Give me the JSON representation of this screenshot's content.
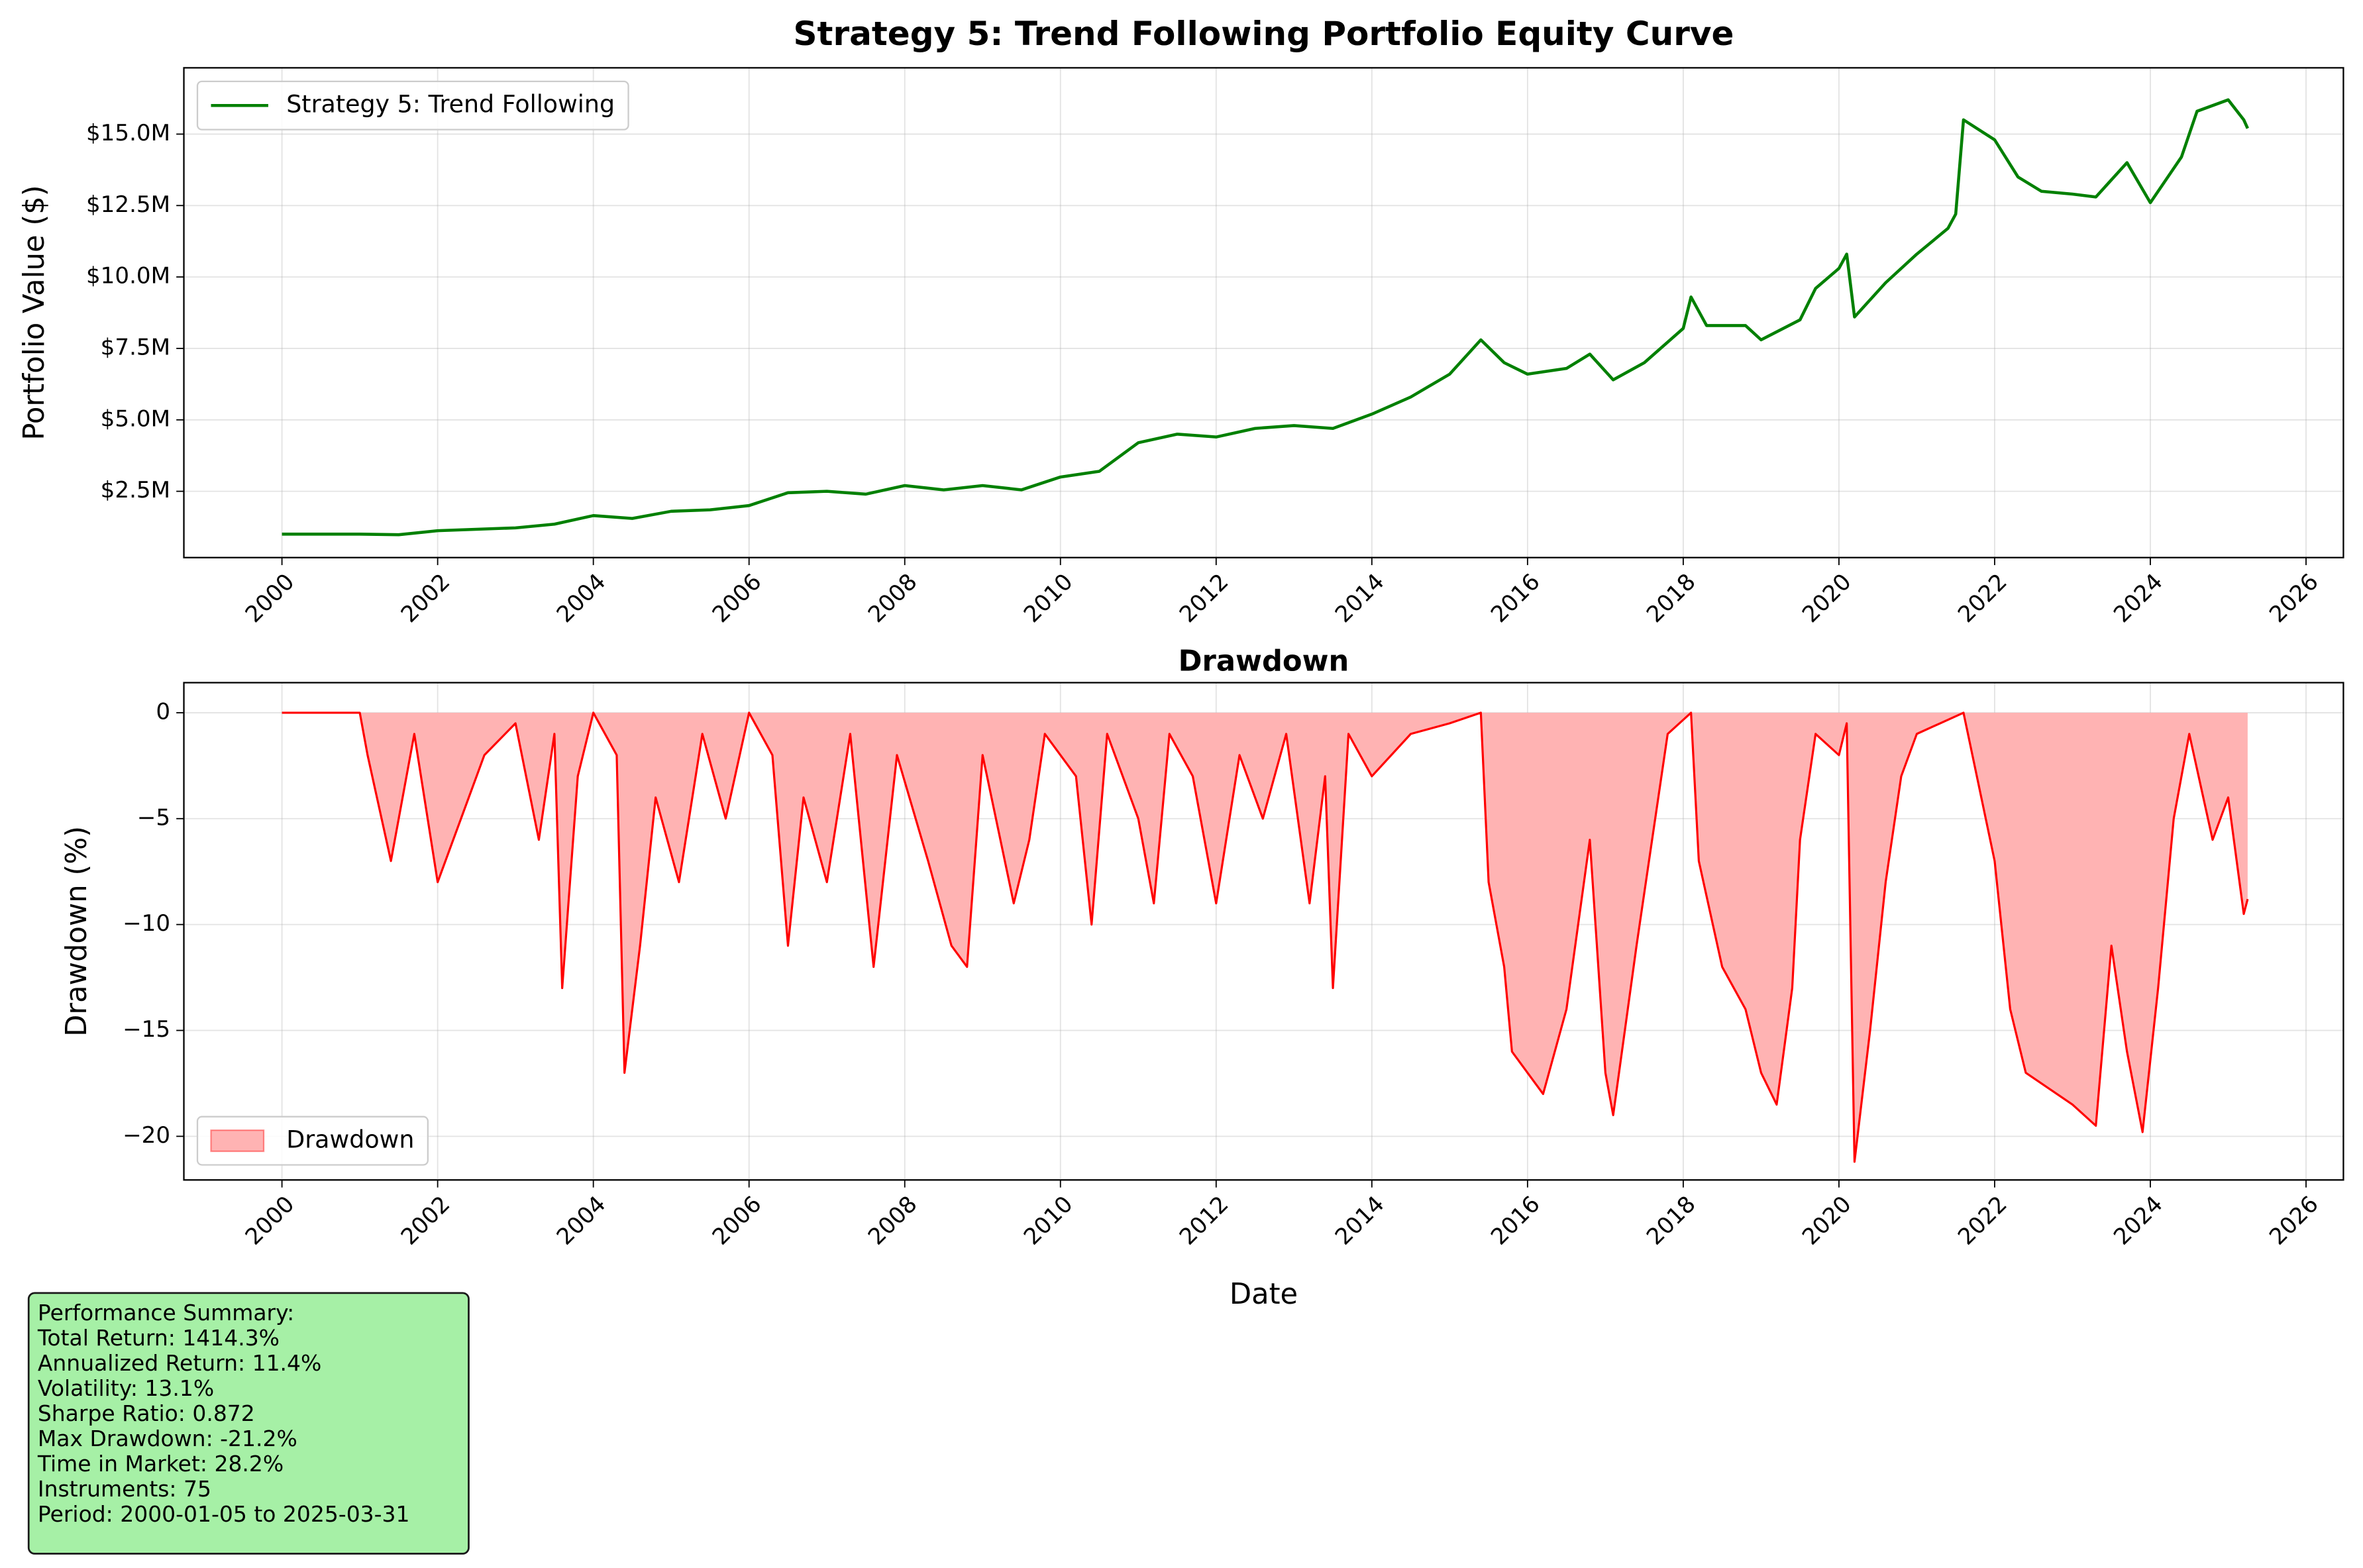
{
  "chart_data": [
    {
      "type": "line",
      "title": "Strategy 5: Trend Following Portfolio Equity Curve",
      "ylabel": "Portfolio Value ($)",
      "xlim": [
        1998.74,
        2026.48
      ],
      "xticks": [
        2000,
        2002,
        2004,
        2006,
        2008,
        2010,
        2012,
        2014,
        2016,
        2018,
        2020,
        2022,
        2024,
        2026
      ],
      "ylim": [
        180000,
        17320000
      ],
      "yticks": [
        {
          "value": 2500000,
          "label": "$2.5M"
        },
        {
          "value": 5000000,
          "label": "$5.0M"
        },
        {
          "value": 7500000,
          "label": "$7.5M"
        },
        {
          "value": 10000000,
          "label": "$10.0M"
        },
        {
          "value": 12500000,
          "label": "$12.5M"
        },
        {
          "value": 15000000,
          "label": "$15.0M"
        }
      ],
      "grid": true,
      "legend": "upper left",
      "x": [
        2000,
        2001,
        2001.5,
        2002,
        2003,
        2003.5,
        2004,
        2004.5,
        2005,
        2005.5,
        2006,
        2006.5,
        2007,
        2007.5,
        2008,
        2008.5,
        2009,
        2009.5,
        2010,
        2010.5,
        2011,
        2011.5,
        2012,
        2012.5,
        2013,
        2013.5,
        2014,
        2014.5,
        2015,
        2015.4,
        2015.7,
        2016,
        2016.5,
        2016.8,
        2017.1,
        2017.5,
        2018,
        2018.1,
        2018.3,
        2018.8,
        2019,
        2019.5,
        2019.7,
        2020,
        2020.1,
        2020.2,
        2020.6,
        2021,
        2021.4,
        2021.5,
        2021.6,
        2022,
        2022.3,
        2022.6,
        2023,
        2023.3,
        2023.7,
        2024,
        2024.4,
        2024.6,
        2025,
        2025.2,
        2025.25
      ],
      "series": [
        {
          "name": "Strategy 5: Trend Following",
          "color": "#008000",
          "values": [
            1000000,
            1000000,
            980000,
            1120000,
            1220000,
            1350000,
            1650000,
            1550000,
            1800000,
            1850000,
            2000000,
            2450000,
            2500000,
            2400000,
            2700000,
            2550000,
            2700000,
            2550000,
            3000000,
            3200000,
            4200000,
            4500000,
            4400000,
            4700000,
            4800000,
            4700000,
            5200000,
            5800000,
            6600000,
            7800000,
            7000000,
            6600000,
            6800000,
            7300000,
            6400000,
            7000000,
            8200000,
            9300000,
            8300000,
            8300000,
            7800000,
            8500000,
            9600000,
            10300000,
            10800000,
            8600000,
            9800000,
            10800000,
            11700000,
            12200000,
            15500000,
            14800000,
            13500000,
            13000000,
            12900000,
            12800000,
            14000000,
            12600000,
            14200000,
            15800000,
            16200000,
            15500000,
            15200000
          ]
        }
      ]
    },
    {
      "type": "area",
      "title": "Drawdown",
      "xlabel": "Date",
      "ylabel": "Drawdown (%)",
      "xlim": [
        1998.74,
        2026.48
      ],
      "xticks": [
        2000,
        2002,
        2004,
        2006,
        2008,
        2010,
        2012,
        2014,
        2016,
        2018,
        2020,
        2022,
        2024,
        2026
      ],
      "ylim": [
        -22.06,
        1.42
      ],
      "yticks": [
        {
          "value": -20,
          "label": "−20"
        },
        {
          "value": -15,
          "label": "−15"
        },
        {
          "value": -10,
          "label": "−10"
        },
        {
          "value": -5,
          "label": "−5"
        },
        0
      ],
      "grid": true,
      "legend": "lower left",
      "x": [
        2000,
        2001,
        2001.1,
        2001.4,
        2001.7,
        2002,
        2002.3,
        2002.6,
        2003,
        2003.3,
        2003.5,
        2003.6,
        2003.8,
        2004,
        2004.3,
        2004.4,
        2004.6,
        2004.8,
        2005.1,
        2005.4,
        2005.7,
        2006,
        2006.3,
        2006.5,
        2006.7,
        2007,
        2007.3,
        2007.6,
        2007.9,
        2008.3,
        2008.6,
        2008.8,
        2009,
        2009.4,
        2009.6,
        2009.8,
        2010.2,
        2010.4,
        2010.6,
        2011,
        2011.2,
        2011.4,
        2011.7,
        2012,
        2012.3,
        2012.6,
        2012.9,
        2013.2,
        2013.4,
        2013.5,
        2013.7,
        2014,
        2014.5,
        2015,
        2015.4,
        2015.5,
        2015.7,
        2015.8,
        2016,
        2016.2,
        2016.5,
        2016.8,
        2017,
        2017.1,
        2017.4,
        2017.6,
        2017.8,
        2018.1,
        2018.2,
        2018.5,
        2018.8,
        2019,
        2019.2,
        2019.4,
        2019.5,
        2019.7,
        2020,
        2020.1,
        2020.2,
        2020.4,
        2020.6,
        2020.8,
        2021,
        2021.3,
        2021.6,
        2022,
        2022.2,
        2022.4,
        2022.8,
        2023,
        2023.3,
        2023.5,
        2023.7,
        2023.9,
        2024.1,
        2024.3,
        2024.5,
        2024.8,
        2025,
        2025.2,
        2025.25
      ],
      "series": [
        {
          "name": "Drawdown",
          "color": "#ff0000",
          "fill_color": "#ffb3b3",
          "values": [
            0,
            0,
            -2,
            -7,
            -1,
            -8,
            -5,
            -2,
            -0.5,
            -6,
            -1,
            -13,
            -3,
            0,
            -2,
            -17,
            -11,
            -4,
            -8,
            -1,
            -5,
            0,
            -2,
            -11,
            -4,
            -8,
            -1,
            -12,
            -2,
            -7,
            -11,
            -12,
            -2,
            -9,
            -6,
            -1,
            -3,
            -10,
            -1,
            -5,
            -9,
            -1,
            -3,
            -9,
            -2,
            -5,
            -1,
            -9,
            -3,
            -13,
            -1,
            -3,
            -1,
            -0.5,
            0,
            -8,
            -12,
            -16,
            -17,
            -18,
            -14,
            -6,
            -17,
            -19,
            -11,
            -6,
            -1,
            0,
            -7,
            -12,
            -14,
            -17,
            -18.5,
            -13,
            -6,
            -1,
            -2,
            -0.5,
            -21.2,
            -15,
            -8,
            -3,
            -1,
            -0.5,
            0,
            -7,
            -14,
            -17,
            -18,
            -18.5,
            -19.5,
            -11,
            -16,
            -19.8,
            -13,
            -5,
            -1,
            -6,
            -4,
            -9.5,
            -8.8
          ]
        }
      ]
    }
  ],
  "annotations": {
    "summary": [
      "Performance Summary:",
      "Total Return: 1414.3%",
      "Annualized Return: 11.4%",
      "Volatility: 13.1%",
      "Sharpe Ratio: 0.872",
      "Max Drawdown: -21.2%",
      "Time in Market: 28.2%",
      "Instruments: 75",
      "Period: 2000-01-05 to 2025-03-31"
    ]
  }
}
